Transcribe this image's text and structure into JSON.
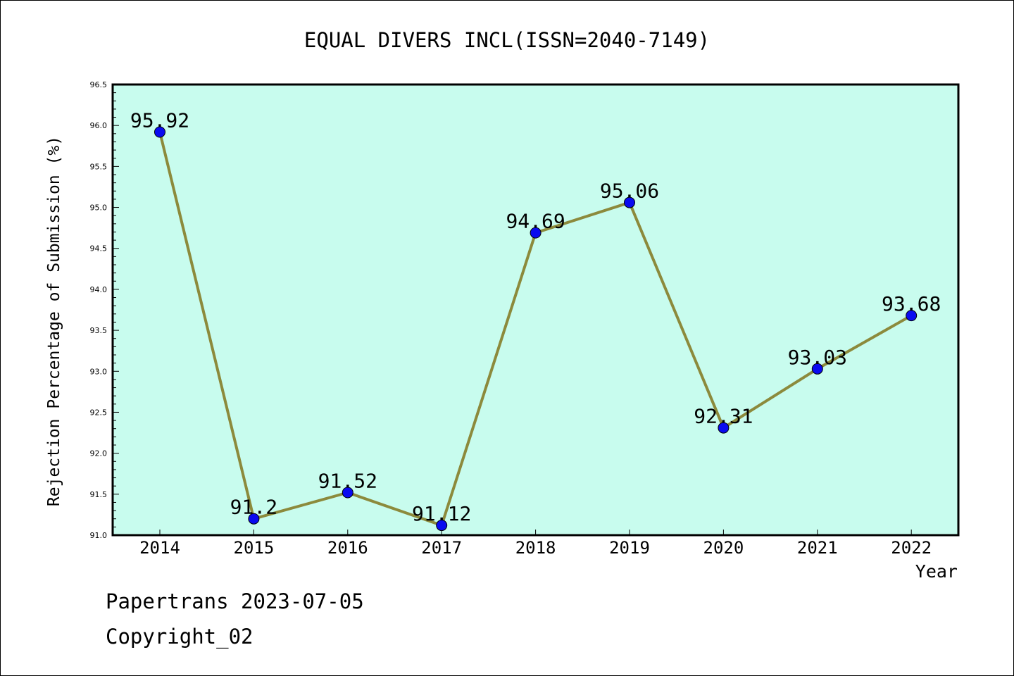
{
  "chart_data": {
    "type": "line",
    "title": "EQUAL DIVERS INCL(ISSN=2040-7149)",
    "xlabel": "Year",
    "ylabel": "Rejection Percentage of Submission (%)",
    "categories": [
      "2014",
      "2015",
      "2016",
      "2017",
      "2018",
      "2019",
      "2020",
      "2021",
      "2022"
    ],
    "series": [
      {
        "values": [
          95.92,
          91.2,
          91.52,
          91.12,
          94.69,
          95.06,
          92.31,
          93.03,
          93.68
        ],
        "labels": [
          "95.92",
          "91.2",
          "91.52",
          "91.12",
          "94.69",
          "95.06",
          "92.31",
          "93.03",
          "93.68"
        ]
      }
    ],
    "ylim": [
      91.0,
      96.5
    ],
    "yticks": [
      "91.0",
      "91.5",
      "92.0",
      "92.5",
      "93.0",
      "93.5",
      "94.0",
      "94.5",
      "95.0",
      "95.5",
      "96.0",
      "96.5"
    ],
    "grid": false,
    "colors": {
      "plot_background": "#c8fcee",
      "line": "#8c8a3c",
      "marker": "#0a0af0"
    }
  },
  "footer": {
    "line1": "Papertrans 2023-07-05",
    "line2": "Copyright_02"
  }
}
